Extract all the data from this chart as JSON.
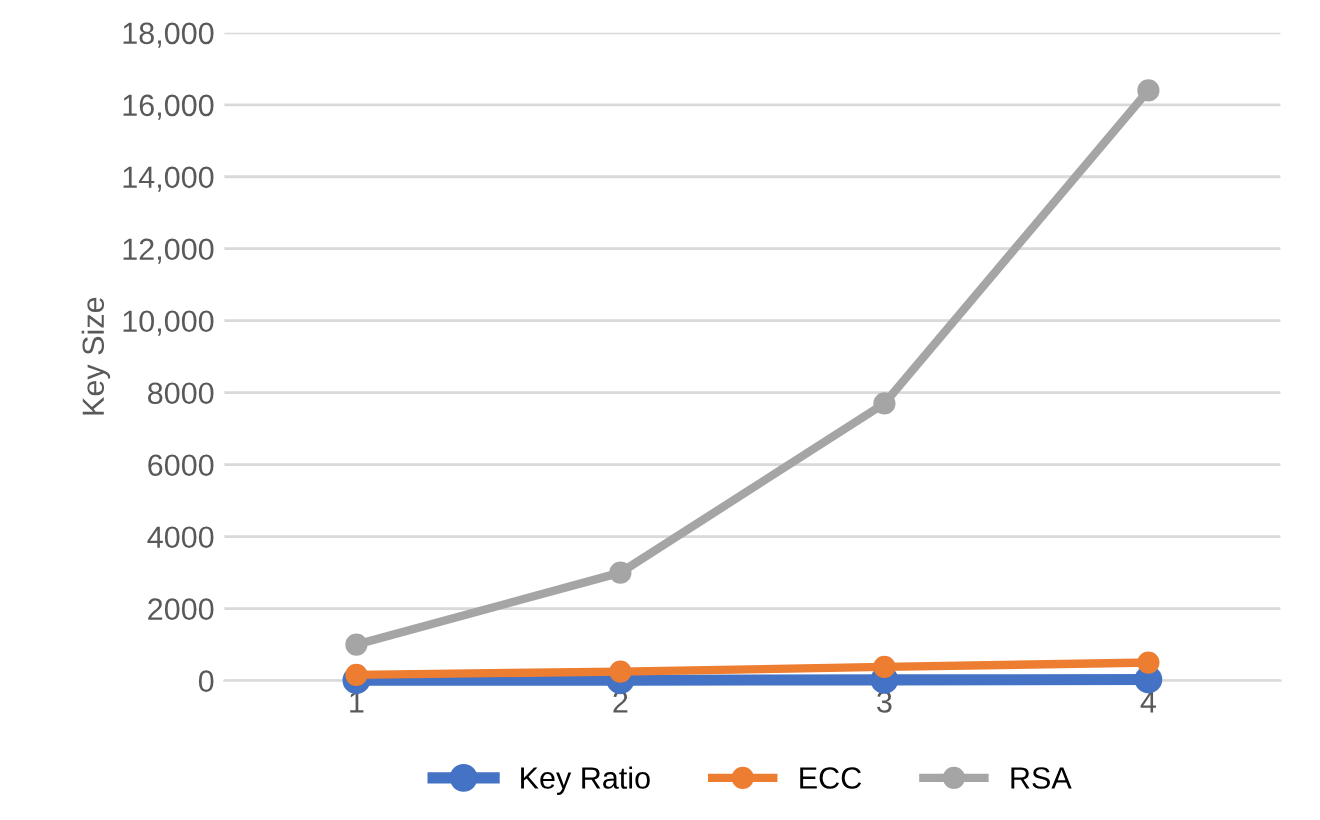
{
  "chart_data": {
    "type": "line",
    "ylabel": "Key Size",
    "categories": [
      "1",
      "2",
      "3",
      "4"
    ],
    "series": [
      {
        "name": "Key Ratio",
        "color": "#4472c4",
        "values": [
          10,
          10,
          20,
          30
        ]
      },
      {
        "name": "ECC",
        "color": "#ed7d31",
        "values": [
          160,
          250,
          380,
          500
        ]
      },
      {
        "name": "RSA",
        "color": "#a5a5a5",
        "values": [
          1000,
          3000,
          7700,
          16400
        ]
      }
    ],
    "ylim": [
      0,
      18000
    ],
    "yticks": [
      {
        "value": 0,
        "label": "0"
      },
      {
        "value": 2000,
        "label": "2000"
      },
      {
        "value": 4000,
        "label": "4000"
      },
      {
        "value": 6000,
        "label": "6000"
      },
      {
        "value": 8000,
        "label": "8000"
      },
      {
        "value": 10000,
        "label": "10,000"
      },
      {
        "value": 12000,
        "label": "12,000"
      },
      {
        "value": 14000,
        "label": "14,000"
      },
      {
        "value": 16000,
        "label": "16,000"
      },
      {
        "value": 18000,
        "label": "18,000"
      }
    ],
    "grid": "y",
    "legend": "bottom",
    "marker": "circle",
    "line_style": "solid"
  }
}
